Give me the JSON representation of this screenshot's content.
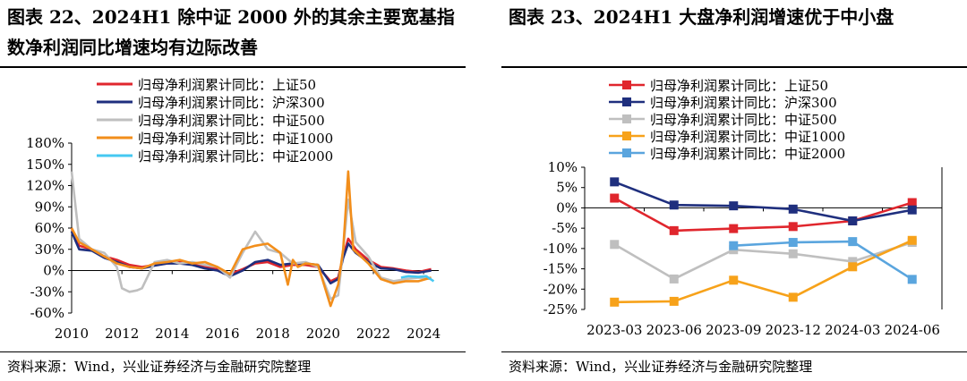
{
  "left": {
    "title_line1": "图表 22、2024H1 除中证 2000 外的其余主要宽基指",
    "title_line2": "数净利润同比增速均有边际改善",
    "source": "资料来源：Wind，兴业证券经济与金融研究院整理"
  },
  "right": {
    "title": "图表 23、2024H1 大盘净利润增速优于中小盘",
    "source": "资料来源：Wind，兴业证券经济与金融研究院整理"
  },
  "chart_data": [
    {
      "type": "line",
      "x_type": "time",
      "xlim": [
        2010,
        2024.6
      ],
      "xticks": [
        "2010",
        "2012",
        "2014",
        "2016",
        "2018",
        "2020",
        "2022",
        "2024"
      ],
      "ylim": [
        -60,
        180
      ],
      "yticks": [
        "180%",
        "150%",
        "120%",
        "90%",
        "60%",
        "30%",
        "0%",
        "-30%",
        "-60%"
      ],
      "xlabel": "",
      "ylabel": "",
      "legend_position": "top",
      "series": [
        {
          "name": "归母净利润累计同比：上证50",
          "color": "#e0262d",
          "x": [
            2010.0,
            2010.3,
            2010.8,
            2011.3,
            2011.8,
            2012.3,
            2012.8,
            2013.3,
            2013.8,
            2014.3,
            2014.8,
            2015.3,
            2015.8,
            2016.3,
            2016.8,
            2017.3,
            2017.8,
            2018.3,
            2018.8,
            2019.3,
            2019.8,
            2020.3,
            2020.6,
            2020.8,
            2021.0,
            2021.3,
            2021.8,
            2022.3,
            2022.8,
            2023.3,
            2023.8,
            2024.3
          ],
          "y": [
            60,
            35,
            30,
            20,
            15,
            8,
            5,
            8,
            10,
            12,
            10,
            5,
            2,
            -5,
            2,
            10,
            12,
            5,
            8,
            8,
            5,
            -15,
            -10,
            20,
            45,
            30,
            15,
            5,
            3,
            0,
            -2,
            2
          ]
        },
        {
          "name": "归母净利润累计同比：沪深300",
          "color": "#1f2f7e",
          "x": [
            2010.0,
            2010.3,
            2010.8,
            2011.3,
            2011.8,
            2012.3,
            2012.8,
            2013.3,
            2013.8,
            2014.3,
            2014.8,
            2015.3,
            2015.8,
            2016.3,
            2016.8,
            2017.3,
            2017.8,
            2018.3,
            2018.8,
            2019.3,
            2019.8,
            2020.3,
            2020.6,
            2020.8,
            2021.0,
            2021.3,
            2021.8,
            2022.3,
            2022.8,
            2023.3,
            2023.8,
            2024.3
          ],
          "y": [
            55,
            30,
            28,
            18,
            12,
            5,
            3,
            7,
            10,
            10,
            8,
            3,
            0,
            -8,
            0,
            12,
            15,
            8,
            10,
            10,
            8,
            -18,
            -12,
            18,
            38,
            25,
            12,
            3,
            2,
            -2,
            -3,
            0
          ]
        },
        {
          "name": "归母净利润累计同比：中证500",
          "color": "#bfbfbf",
          "x": [
            2010.0,
            2010.3,
            2010.8,
            2011.3,
            2011.8,
            2012.0,
            2012.3,
            2012.6,
            2012.8,
            2013.3,
            2013.8,
            2014.3,
            2014.8,
            2015.3,
            2015.8,
            2016.3,
            2016.8,
            2017.3,
            2017.6,
            2017.8,
            2018.3,
            2018.8,
            2019.3,
            2019.8,
            2020.3,
            2020.6,
            2020.8,
            2021.0,
            2021.3,
            2021.8,
            2022.3,
            2022.8,
            2023.3,
            2023.8,
            2024.3
          ],
          "y": [
            140,
            45,
            30,
            25,
            5,
            -25,
            -30,
            -28,
            -25,
            12,
            15,
            10,
            12,
            8,
            5,
            -10,
            25,
            55,
            40,
            30,
            25,
            10,
            12,
            5,
            -40,
            -35,
            30,
            100,
            40,
            20,
            -10,
            -15,
            -12,
            -10,
            -12
          ]
        },
        {
          "name": "归母净利润累计同比：中证1000",
          "color": "#f28e1b",
          "x": [
            2010.0,
            2010.3,
            2010.8,
            2011.3,
            2011.8,
            2012.3,
            2012.8,
            2013.3,
            2013.8,
            2014.3,
            2014.8,
            2015.3,
            2015.8,
            2016.3,
            2016.8,
            2017.3,
            2017.8,
            2018.3,
            2018.6,
            2018.8,
            2019.0,
            2019.3,
            2019.8,
            2020.3,
            2020.6,
            2020.8,
            2021.0,
            2021.2,
            2021.5,
            2021.8,
            2022.3,
            2022.8,
            2023.3,
            2023.8,
            2024.3
          ],
          "y": [
            60,
            40,
            30,
            20,
            10,
            5,
            3,
            10,
            12,
            15,
            10,
            12,
            5,
            -5,
            30,
            35,
            38,
            25,
            -20,
            15,
            5,
            10,
            8,
            -50,
            -20,
            30,
            140,
            30,
            20,
            10,
            -12,
            -18,
            -15,
            -15,
            -10
          ]
        },
        {
          "name": "归母净利润累计同比：中证2000",
          "color": "#45c8f2",
          "x": [
            2023.1,
            2023.4,
            2023.8,
            2024.1,
            2024.4
          ],
          "y": [
            -10,
            -8,
            -9,
            -8,
            -15
          ]
        }
      ]
    },
    {
      "type": "line",
      "categories": [
        "2023-03",
        "2023-06",
        "2023-09",
        "2023-12",
        "2024-03",
        "2024-06"
      ],
      "ylim": [
        -25,
        10
      ],
      "yticks": [
        "10%",
        "5%",
        "0%",
        "-5%",
        "-10%",
        "-15%",
        "-20%",
        "-25%"
      ],
      "xlabel": "",
      "ylabel": "",
      "legend_position": "top",
      "series": [
        {
          "name": "归母净利润累计同比：上证50",
          "color": "#e0262d",
          "values": [
            2.4,
            -5.6,
            -5.1,
            -4.6,
            -3.2,
            1.3
          ]
        },
        {
          "name": "归母净利润累计同比：沪深300",
          "color": "#1f2f7e",
          "values": [
            6.4,
            0.7,
            0.5,
            -0.3,
            -3.2,
            -0.5
          ]
        },
        {
          "name": "归母净利润累计同比：中证500",
          "color": "#bfbfbf",
          "values": [
            -9.0,
            -17.5,
            -10.3,
            -11.3,
            -13.2,
            -8.5
          ]
        },
        {
          "name": "归母净利润累计同比：中证1000",
          "color": "#f7a21a",
          "values": [
            -23.2,
            -23.0,
            -17.8,
            -22.0,
            -14.5,
            -8.0
          ]
        },
        {
          "name": "归母净利润累计同比：中证2000",
          "color": "#5aa5de",
          "values": [
            null,
            null,
            -9.3,
            -8.5,
            -8.3,
            -17.6
          ]
        }
      ]
    }
  ]
}
